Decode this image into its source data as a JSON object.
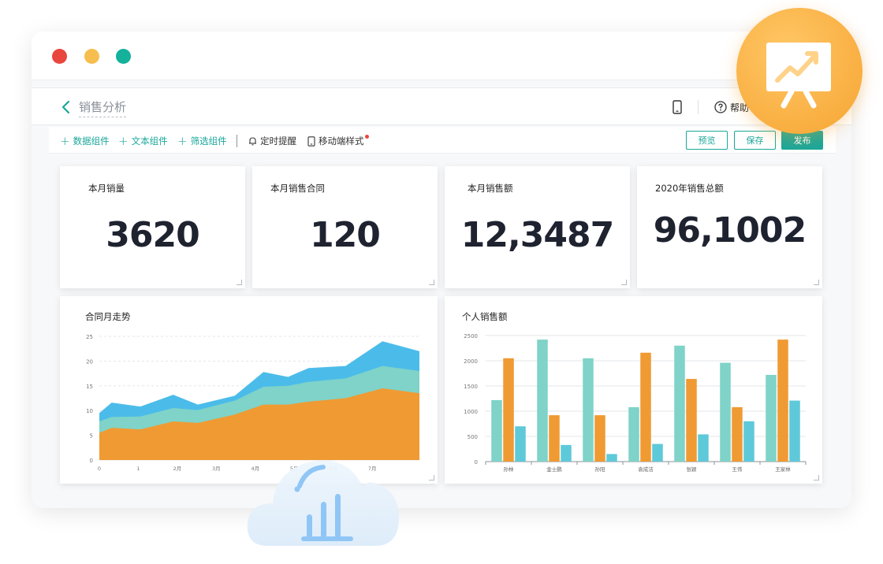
{
  "window": {
    "controls": [
      "close",
      "minimize",
      "maximize"
    ]
  },
  "nav": {
    "page_name": "销售分析",
    "help_label": "帮助"
  },
  "toolbar": {
    "add_data": "数据组件",
    "add_text": "文本组件",
    "add_filter": "筛选组件",
    "reminder": "定时提醒",
    "mobile_style": "移动端样式",
    "preview": "预览",
    "save": "保存",
    "publish": "发布"
  },
  "kpis": [
    {
      "label": "本月销量",
      "value": "3620"
    },
    {
      "label": "本月销售合同",
      "value": "120"
    },
    {
      "label": "本月销售额",
      "value": "12,3487"
    },
    {
      "label": "2020年销售总额",
      "value": "96,1002"
    }
  ],
  "colors": {
    "accent": "#1aa79a",
    "orange": "#f09a33",
    "teal": "#7fd3c8",
    "blue": "#4bbcea",
    "cyan": "#5ec9d9"
  },
  "chart_data": [
    {
      "type": "area",
      "title": "合同月走势",
      "x_ticks": [
        "0",
        "1",
        "2月",
        "3月",
        "4月",
        "5月",
        "6月",
        "7月"
      ],
      "x": [
        0,
        0.3,
        1,
        1.8,
        2.4,
        3.3,
        4,
        4.6,
        5.1,
        6,
        6.9,
        7.8
      ],
      "ylim": [
        0,
        25
      ],
      "y_ticks": [
        0,
        5,
        10,
        15,
        20,
        25
      ],
      "series": [
        {
          "values": [
            5.5,
            6.5,
            6.2,
            7.8,
            7.5,
            9.2,
            11.2,
            11.2,
            11.8,
            12.5,
            14.5,
            13.5
          ]
        },
        {
          "values": [
            7.8,
            8.7,
            8.8,
            10.5,
            10.1,
            12.0,
            14.8,
            15.0,
            15.8,
            16.5,
            19.0,
            18.0
          ]
        },
        {
          "values": [
            9.5,
            11.6,
            10.8,
            13.2,
            11.2,
            13.0,
            17.8,
            16.8,
            18.6,
            19.0,
            24.0,
            22.0
          ]
        }
      ],
      "grid": true
    },
    {
      "type": "bar",
      "title": "个人销售额",
      "categories": [
        "孙林",
        "金士鹏",
        "孙阳",
        "袁成洁",
        "张颖",
        "王伟",
        "王家林"
      ],
      "ylim": [
        0,
        2500
      ],
      "y_ticks": [
        0,
        500,
        1000,
        1500,
        2000,
        2500
      ],
      "series": [
        {
          "values": [
            1220,
            2420,
            2050,
            1080,
            2300,
            1960,
            1720
          ]
        },
        {
          "values": [
            2050,
            920,
            920,
            2160,
            1640,
            1080,
            2420
          ]
        },
        {
          "values": [
            700,
            330,
            150,
            350,
            540,
            800,
            1210
          ]
        }
      ],
      "grid": true
    }
  ]
}
